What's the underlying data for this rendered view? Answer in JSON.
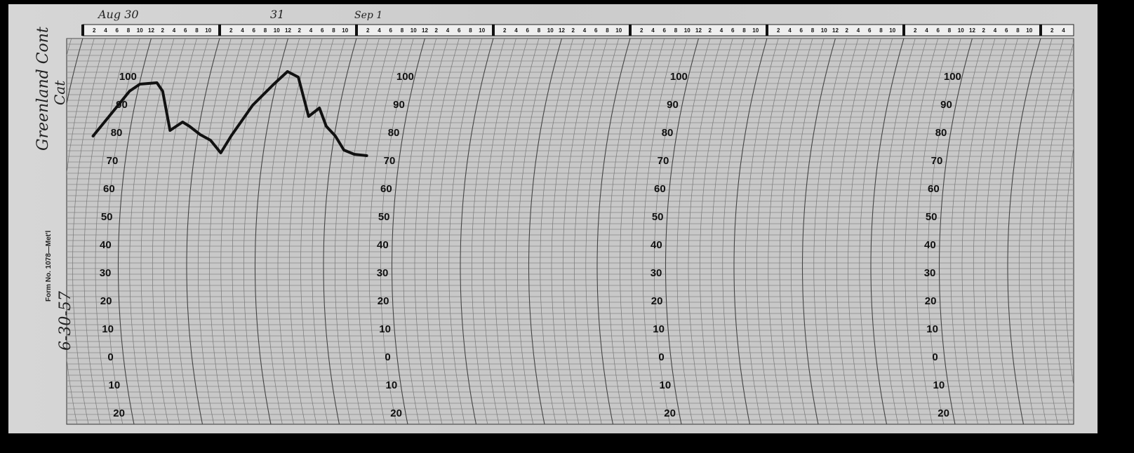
{
  "handwritten": {
    "date_1": "Aug 30",
    "date_2": "31",
    "date_3": "Sep 1",
    "station": "Greenland Cont",
    "station_2": "Cat",
    "date_written": "6-30-57"
  },
  "form_label": "Form No. 1078—Met'l",
  "hour_labels": [
    "2",
    "4",
    "6",
    "8",
    "10",
    "12",
    "2",
    "4",
    "6",
    "8",
    "10"
  ],
  "temperature_scale": [
    100,
    90,
    80,
    70,
    60,
    50,
    40,
    30,
    20,
    10,
    0,
    {
      "value": -10,
      "label": "10"
    },
    {
      "value": -20,
      "label": "20"
    }
  ],
  "trace": {
    "hours": [
      1.8,
      5.2,
      8.2,
      10,
      13,
      14,
      15.3,
      17.5,
      18.7,
      20.6,
      22.4,
      24.2,
      26,
      29.8,
      33.5,
      35.9,
      37.8,
      39.6,
      41.5,
      42.7,
      44.3,
      45.8,
      47.6,
      49.8
    ],
    "temperatures": [
      79,
      87.5,
      95,
      97.5,
      98,
      95,
      81,
      84,
      82.5,
      79.5,
      77.5,
      73,
      79,
      90,
      97.5,
      102,
      100,
      86,
      89,
      82.5,
      79,
      74,
      72.5,
      72
    ]
  }
}
